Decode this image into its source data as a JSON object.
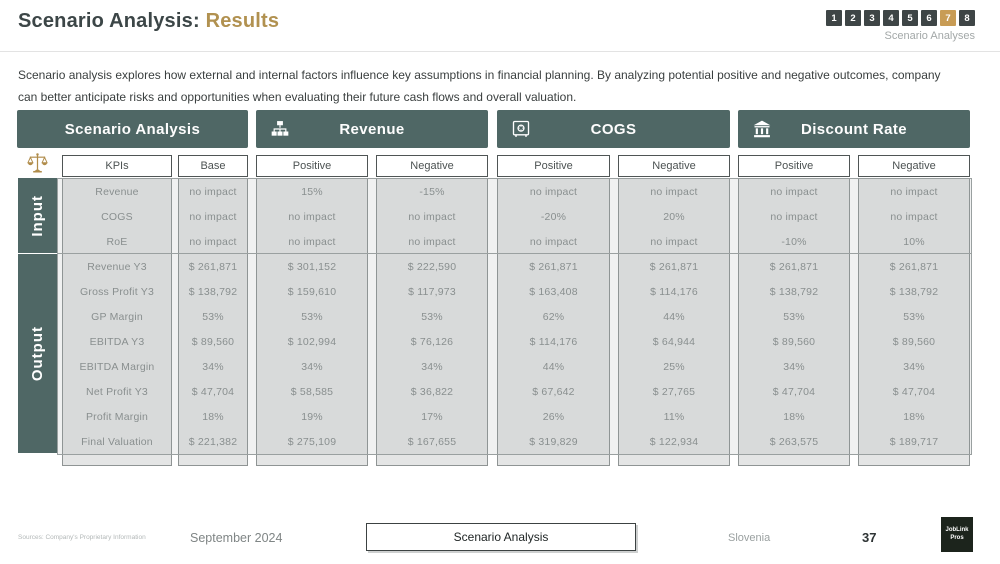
{
  "header": {
    "title_prefix": "Scenario Analysis:",
    "title_accent": "Results",
    "pager": {
      "pages": [
        "1",
        "2",
        "3",
        "4",
        "5",
        "6",
        "7",
        "8"
      ],
      "active": "7",
      "label": "Scenario Analyses"
    }
  },
  "intro": "Scenario analysis explores how external and internal factors influence key assumptions in financial planning. By analyzing potential positive and negative outcomes, company can better anticipate risks and opportunities when evaluating their future cash flows and overall valuation.",
  "colors": {
    "teal": "#4f6765",
    "gold": "#c89c55",
    "title_accent": "#b19150",
    "body_gray": "#e4e5e5"
  },
  "section_bars": [
    {
      "label": "Scenario Analysis",
      "icon": ""
    },
    {
      "label": "Revenue",
      "icon": "sitemap-icon"
    },
    {
      "label": "COGS",
      "icon": "safe-icon"
    },
    {
      "label": "Discount Rate",
      "icon": "bank-icon"
    }
  ],
  "row_groups": [
    {
      "label": "Input",
      "rows": 3
    },
    {
      "label": "Output",
      "rows": 8
    }
  ],
  "table": {
    "columns": [
      {
        "header": "KPIs",
        "values": [
          "Revenue",
          "COGS",
          "RoE",
          "Revenue Y3",
          "Gross Profit Y3",
          "GP Margin",
          "EBITDA Y3",
          "EBITDA Margin",
          "Net Profit Y3",
          "Profit Margin",
          "Final Valuation"
        ]
      },
      {
        "header": "Base",
        "values": [
          "no impact",
          "no impact",
          "no impact",
          "$ 261,871",
          "$ 138,792",
          "53%",
          "$ 89,560",
          "34%",
          "$ 47,704",
          "18%",
          "$ 221,382"
        ]
      },
      {
        "header": "Positive",
        "values": [
          "15%",
          "no impact",
          "no impact",
          "$ 301,152",
          "$ 159,610",
          "53%",
          "$ 102,994",
          "34%",
          "$ 58,585",
          "19%",
          "$ 275,109"
        ]
      },
      {
        "header": "Negative",
        "values": [
          "-15%",
          "no impact",
          "no impact",
          "$ 222,590",
          "$ 117,973",
          "53%",
          "$ 76,126",
          "34%",
          "$ 36,822",
          "17%",
          "$ 167,655"
        ]
      },
      {
        "header": "Positive",
        "values": [
          "no impact",
          "-20%",
          "no impact",
          "$ 261,871",
          "$ 163,408",
          "62%",
          "$ 114,176",
          "44%",
          "$ 67,642",
          "26%",
          "$ 319,829"
        ]
      },
      {
        "header": "Negative",
        "values": [
          "no impact",
          "20%",
          "no impact",
          "$ 261,871",
          "$ 114,176",
          "44%",
          "$ 64,944",
          "25%",
          "$ 27,765",
          "11%",
          "$ 122,934"
        ]
      },
      {
        "header": "Positive",
        "values": [
          "no impact",
          "no impact",
          "-10%",
          "$ 261,871",
          "$ 138,792",
          "53%",
          "$ 89,560",
          "34%",
          "$ 47,704",
          "18%",
          "$ 263,575"
        ]
      },
      {
        "header": "Negative",
        "values": [
          "no impact",
          "no impact",
          "10%",
          "$ 261,871",
          "$ 138,792",
          "53%",
          "$ 89,560",
          "34%",
          "$ 47,704",
          "18%",
          "$ 189,717"
        ]
      }
    ]
  },
  "footer": {
    "sources": "Sources: Company's Proprietary Information",
    "date": "September 2024",
    "section_label": "Scenario Analysis",
    "country": "Slovenia",
    "page_number": "37",
    "logo_line1": "JobLink",
    "logo_line2": "Pros"
  }
}
